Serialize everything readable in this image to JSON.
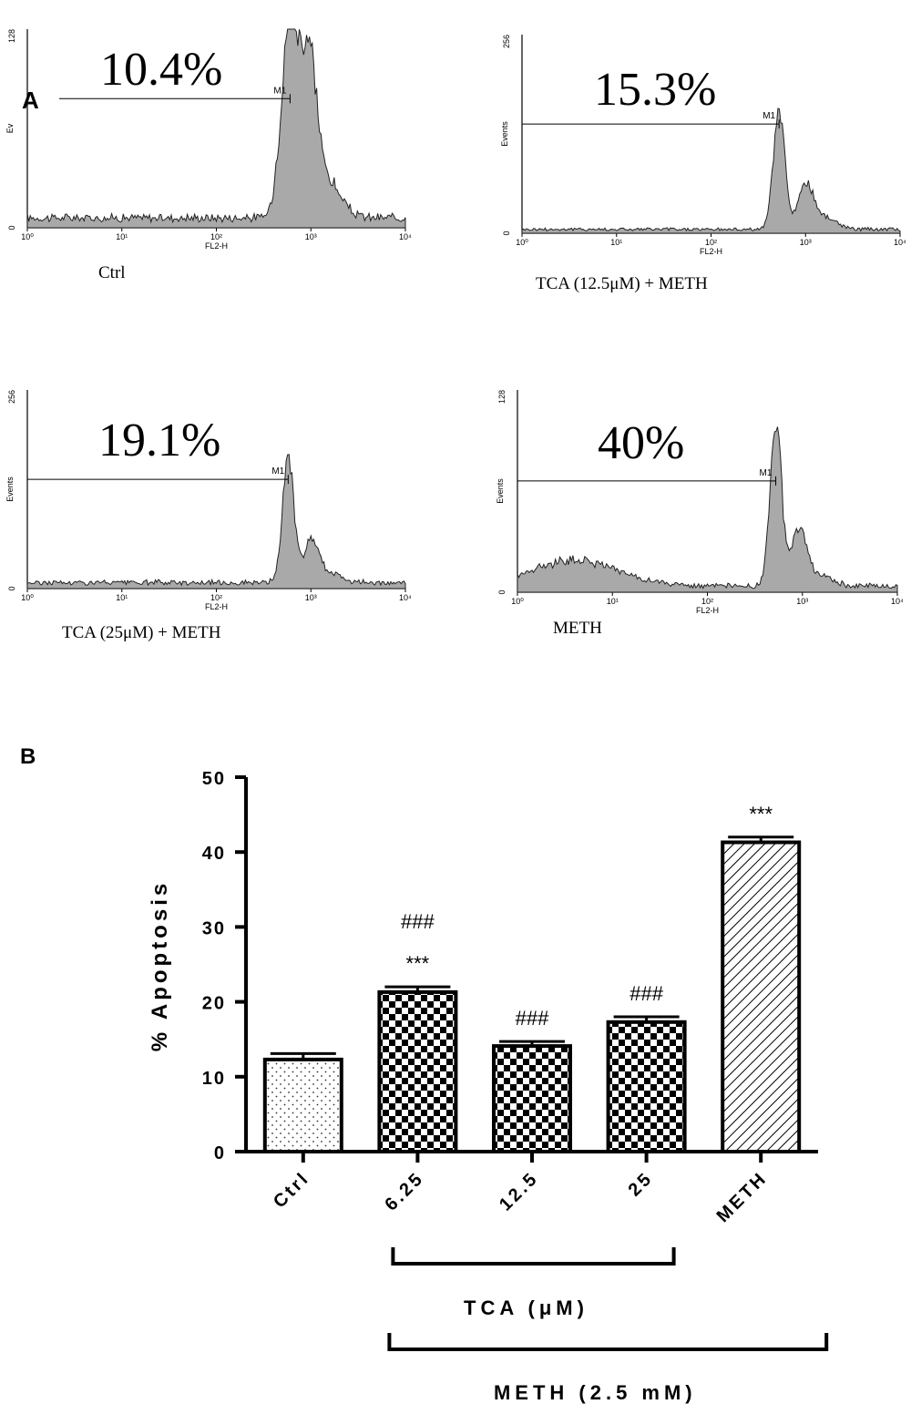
{
  "panel_a": {
    "label": "A",
    "histograms": [
      {
        "id": "ctrl",
        "ymax_label": "128",
        "ylabel": "Ev",
        "xlabel": "FL2-H",
        "marker": "M1",
        "percent": "10.4%",
        "caption": "Ctrl",
        "x_ticks": [
          "10⁰",
          "10¹",
          "10²",
          "10³",
          "10⁴"
        ],
        "bg_level": 0.05,
        "peaks": [
          {
            "log_x": 2.78,
            "height": 1.0,
            "width": 0.09
          },
          {
            "log_x": 2.98,
            "height": 0.72,
            "width": 0.08
          },
          {
            "log_x": 3.15,
            "height": 0.2,
            "width": 0.15
          }
        ]
      },
      {
        "id": "tca125",
        "ymax_label": "256",
        "ylabel": "Events",
        "xlabel": "FL2-H",
        "marker": "M1",
        "percent": "15.3%",
        "caption": "TCA (12.5μM) + METH",
        "x_ticks": [
          "10⁰",
          "10¹",
          "10²",
          "10³",
          "10⁴"
        ],
        "bg_level": 0.02,
        "peaks": [
          {
            "log_x": 2.72,
            "height": 0.6,
            "width": 0.06
          },
          {
            "log_x": 3.0,
            "height": 0.22,
            "width": 0.08
          },
          {
            "log_x": 3.2,
            "height": 0.06,
            "width": 0.12
          }
        ]
      },
      {
        "id": "tca25",
        "ymax_label": "256",
        "ylabel": "Events",
        "xlabel": "FL2-H",
        "marker": "M1",
        "percent": "19.1%",
        "caption": "TCA (25μM) + METH",
        "x_ticks": [
          "10⁰",
          "10¹",
          "10²",
          "10³",
          "10⁴"
        ],
        "bg_level": 0.03,
        "peaks": [
          {
            "log_x": 2.76,
            "height": 0.62,
            "width": 0.06
          },
          {
            "log_x": 3.0,
            "height": 0.2,
            "width": 0.08
          },
          {
            "log_x": 3.2,
            "height": 0.05,
            "width": 0.12
          }
        ]
      },
      {
        "id": "meth",
        "ymax_label": "128",
        "ylabel": "Events",
        "xlabel": "FL2-H",
        "marker": "M1",
        "percent": "40%",
        "caption": "METH",
        "x_ticks": [
          "10⁰",
          "10¹",
          "10²",
          "10³",
          "10⁴"
        ],
        "bg_level": 0.03,
        "peaks": [
          {
            "log_x": 0.6,
            "height": 0.13,
            "width": 0.45
          },
          {
            "log_x": 2.72,
            "height": 0.82,
            "width": 0.06
          },
          {
            "log_x": 2.97,
            "height": 0.28,
            "width": 0.08
          },
          {
            "log_x": 3.2,
            "height": 0.05,
            "width": 0.12
          }
        ]
      }
    ]
  },
  "chart_data": {
    "type": "bar",
    "panel_label": "B",
    "categories": [
      "Ctrl",
      "6.25",
      "12.5",
      "25",
      "METH"
    ],
    "values": [
      12.3,
      21.3,
      14.1,
      17.3,
      41.3
    ],
    "errors": [
      0.8,
      0.7,
      0.6,
      0.7,
      0.7
    ],
    "patterns": [
      "dots",
      "checker",
      "checker",
      "checker",
      "hatch"
    ],
    "annotations": [
      [],
      [
        "###",
        "***"
      ],
      [
        "###"
      ],
      [
        "###"
      ],
      [
        "***"
      ]
    ],
    "ylabel": "% Apoptosis",
    "ylim": [
      0,
      50
    ],
    "yticks": [
      0,
      10,
      20,
      30,
      40,
      50
    ],
    "brackets": [
      {
        "label": "TCA (μM)",
        "from": "6.25",
        "to": "25"
      },
      {
        "label": "METH (2.5 mM)",
        "from": "6.25",
        "to": "METH"
      }
    ]
  }
}
